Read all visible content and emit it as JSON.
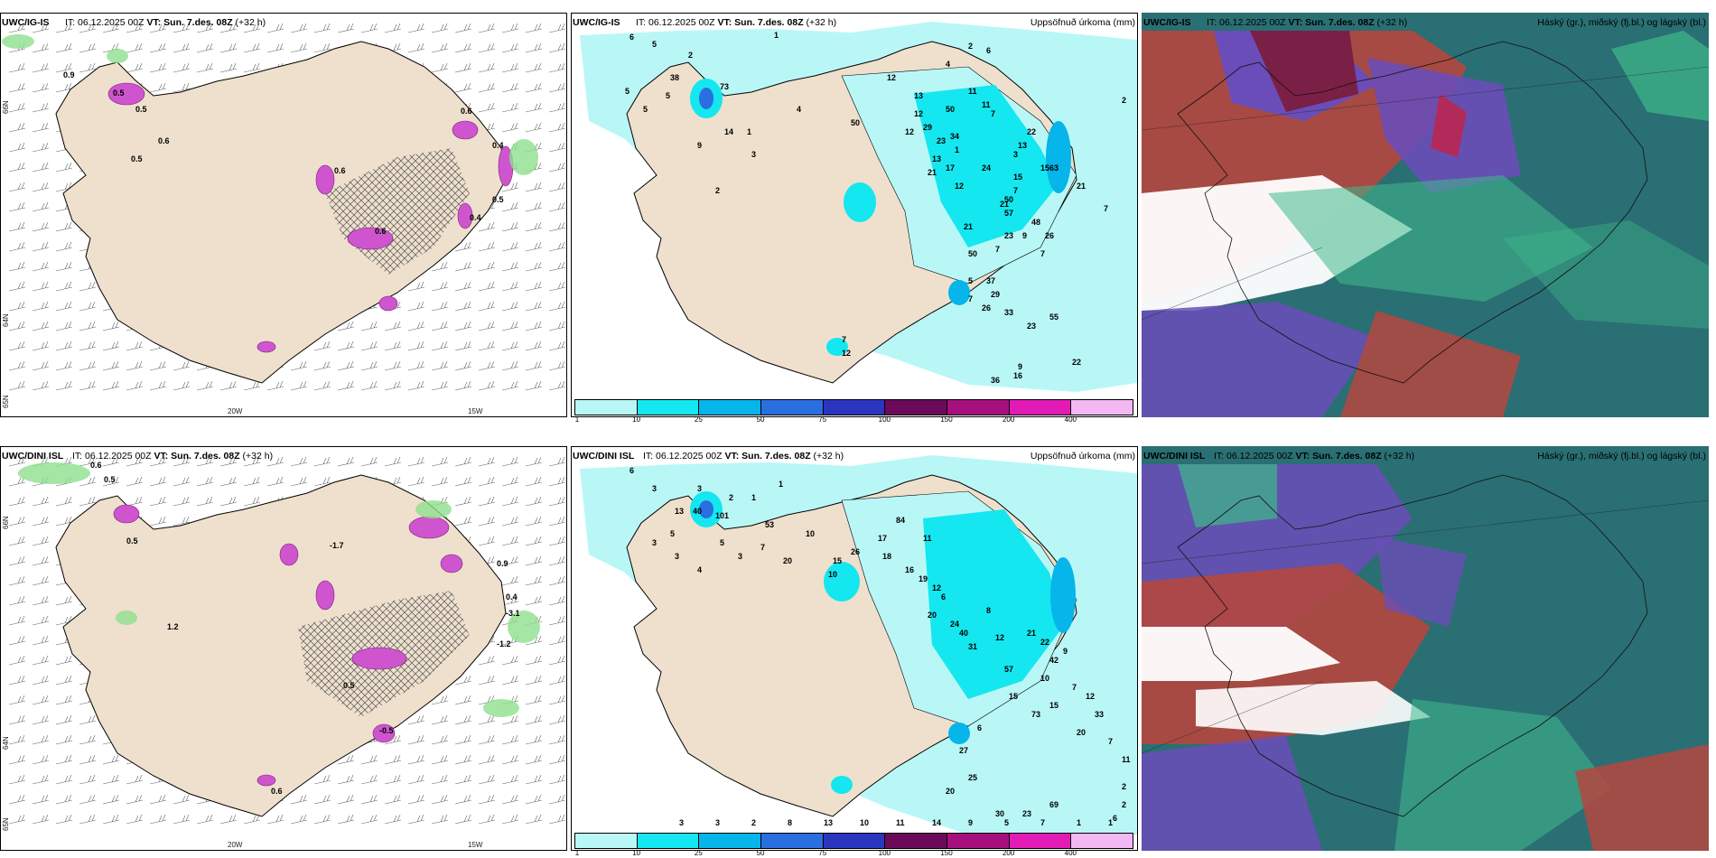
{
  "rows": [
    {
      "model": "UWC/IG-IS",
      "panels": [
        {
          "type": "wind",
          "it_text": "IT: 06.12.2025 00Z",
          "vt_label": "VT: Sun. 7.des. 08Z",
          "lead": "(+32 h)",
          "right_label": "",
          "lat_labels": [
            "66N",
            "64N",
            "65N"
          ],
          "lon_labels": [
            "20W",
            "15W"
          ],
          "values": [
            "0.9",
            "0.5",
            "0.5",
            "0.6",
            "0.5",
            "0.6",
            "0.4",
            "0.5",
            "0.4",
            "0.6",
            "0.6"
          ]
        },
        {
          "type": "precip",
          "it_text": "IT: 06.12.2025 00Z",
          "vt_label": "VT: Sun. 7.des. 08Z",
          "lead": "(+32 h)",
          "right_label": "Uppsöfnuð úrkoma (mm)",
          "values": [
            "6",
            "5",
            "2",
            "1",
            "5",
            "5",
            "38",
            "5",
            "9",
            "73",
            "14",
            "2",
            "1",
            "3",
            "4",
            "50",
            "12",
            "13",
            "12",
            "12",
            "29",
            "23",
            "13",
            "50",
            "21",
            "17",
            "1",
            "11",
            "34",
            "7",
            "12",
            "24",
            "21",
            "11",
            "15",
            "22",
            "13",
            "15",
            "50",
            "63",
            "57",
            "23",
            "9",
            "26",
            "21",
            "48",
            "7",
            "7",
            "50",
            "21",
            "37",
            "29",
            "26",
            "33",
            "23",
            "22",
            "5",
            "7",
            "12",
            "16",
            "36",
            "9",
            "55",
            "7",
            "7",
            "7",
            "3",
            "4",
            "2",
            "6",
            "2"
          ]
        },
        {
          "type": "cloud",
          "it_text": "IT: 06.12.2025 00Z",
          "vt_label": "VT: Sun. 7.des. 08Z",
          "lead": "(+32 h)",
          "right_label": "Háský (gr.), miðský (fj.bl.) og lágský (bl.)"
        }
      ]
    },
    {
      "model": "UWC/DINI ISL",
      "panels": [
        {
          "type": "wind",
          "it_text": "IT: 06.12.2025 00Z",
          "vt_label": "VT: Sun. 7.des. 08Z",
          "lead": "(+32 h)",
          "right_label": "",
          "lat_labels": [
            "66N",
            "64N",
            "65N"
          ],
          "lon_labels": [
            "20W",
            "15W"
          ],
          "values": [
            "0.6",
            "0.5",
            "0.5",
            "-1.7",
            "-1.2",
            "1.2",
            "-3.1",
            "0.9",
            "0.5",
            "-0.5",
            "0.6",
            "0.4"
          ]
        },
        {
          "type": "precip",
          "it_text": "IT: 06.12.2025 00Z",
          "vt_label": "VT: Sun. 7.des. 08Z",
          "lead": "(+32 h)",
          "right_label": "Uppsöfnuð úrkoma (mm)",
          "values": [
            "6",
            "3",
            "3",
            "2",
            "1",
            "1",
            "13",
            "40",
            "5",
            "101",
            "53",
            "3",
            "3",
            "4",
            "5",
            "3",
            "7",
            "20",
            "10",
            "10",
            "15",
            "26",
            "17",
            "18",
            "84",
            "16",
            "19",
            "11",
            "12",
            "20",
            "6",
            "24",
            "40",
            "31",
            "8",
            "12",
            "57",
            "15",
            "21",
            "22",
            "42",
            "9",
            "10",
            "15",
            "73",
            "6",
            "27",
            "25",
            "20",
            "30",
            "23",
            "69",
            "7",
            "12",
            "33",
            "20",
            "7",
            "11",
            "2",
            "2",
            "6",
            "1",
            "1",
            "7",
            "5",
            "9",
            "14",
            "11",
            "10",
            "13",
            "8",
            "2",
            "3",
            "3"
          ]
        },
        {
          "type": "cloud",
          "it_text": "IT: 06.12.2025 00Z",
          "vt_label": "VT: Sun. 7.des. 08Z",
          "lead": "(+32 h)",
          "right_label": "Háský (gr.), miðský (fj.bl.) og lágský (bl.)"
        }
      ]
    }
  ],
  "colorbar": {
    "ticks": [
      "1",
      "10",
      "25",
      "50",
      "75",
      "100",
      "150",
      "200",
      "400"
    ],
    "colors": [
      "#b9f7f7",
      "#14e7ef",
      "#06b5ea",
      "#2a6ee0",
      "#2a35c0",
      "#6b0a58",
      "#a6107e",
      "#e21ab6",
      "#f3b7f3"
    ]
  },
  "colors": {
    "land": "#eee0cd",
    "precip_light": "#b9f7f7",
    "precip_mid": "#14e7ef",
    "precip_blue": "#2a6ee0",
    "magenta": "#cf55cf",
    "green": "#8fe08f",
    "cloud_teal": "#2a6f73",
    "cloud_red": "#b5463f",
    "cloud_purple": "#6a4db8",
    "cloud_green": "#3fb98a"
  }
}
